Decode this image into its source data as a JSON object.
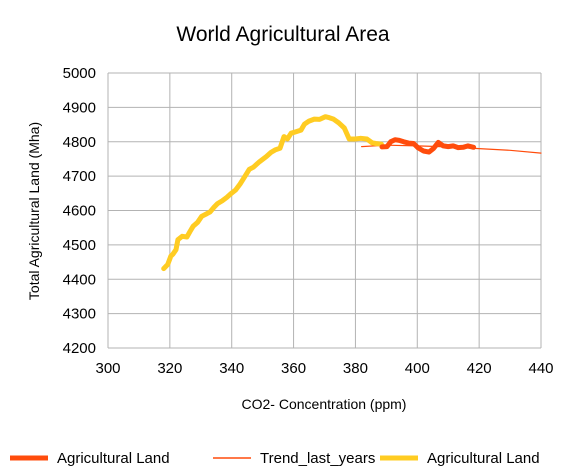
{
  "chart_data": {
    "type": "line",
    "title": "World Agricultural Area",
    "xlabel": "CO2- Concentration (ppm)",
    "ylabel": "Total Agricultural Land (Mha)",
    "xlim": [
      300,
      440
    ],
    "ylim": [
      4200,
      5000
    ],
    "xticks": [
      300,
      320,
      340,
      360,
      380,
      400,
      420,
      440
    ],
    "yticks": [
      4200,
      4300,
      4400,
      4500,
      4600,
      4700,
      4800,
      4900,
      5000
    ],
    "grid": true,
    "legend_position": "bottom",
    "series": [
      {
        "name": "Agricultural Land",
        "color": "#ff4c0c",
        "style": "thick-line",
        "x": [
          388.6,
          390.2,
          391.4,
          392.8,
          394.2,
          395.6,
          397.2,
          398.8,
          400.3,
          402.0,
          403.8,
          405.2,
          406.8,
          408.4,
          410.0,
          411.6,
          413.2,
          414.8,
          416.4,
          418.2
        ],
        "y": [
          4785,
          4786,
          4800,
          4806,
          4804,
          4800,
          4796,
          4795,
          4782,
          4773,
          4770,
          4780,
          4798,
          4788,
          4786,
          4788,
          4783,
          4784,
          4788,
          4784
        ]
      },
      {
        "name": "Trend_last_years",
        "color": "#ff4c0c",
        "style": "thin-line",
        "x": [
          382,
          390,
          400,
          410,
          420,
          430,
          440
        ],
        "y": [
          4786,
          4790,
          4788,
          4785,
          4780,
          4775,
          4767
        ]
      },
      {
        "name": "Agricultural Land",
        "color": "#ffcc22",
        "style": "thick-line",
        "x": [
          318.0,
          319.3,
          320.3,
          321.0,
          322.0,
          322.6,
          324.0,
          325.5,
          326.5,
          327.5,
          329.0,
          330.3,
          332.0,
          333.0,
          334.3,
          335.4,
          336.9,
          338.4,
          339.9,
          341.3,
          342.7,
          344.1,
          345.7,
          347.0,
          349.0,
          351.2,
          352.7,
          354.2,
          355.6,
          356.9,
          358.0,
          359.2,
          360.4,
          362.4,
          363.5,
          365.0,
          366.7,
          368.4,
          370.3,
          371.6,
          372.9,
          374.6,
          376.4,
          378.0,
          379.9,
          381.7,
          383.7,
          385.4,
          386.6,
          388.4
        ],
        "y": [
          4431,
          4443,
          4467,
          4473,
          4486,
          4515,
          4525,
          4523,
          4539,
          4554,
          4566,
          4583,
          4591,
          4596,
          4610,
          4620,
          4628,
          4638,
          4650,
          4660,
          4677,
          4697,
          4720,
          4726,
          4742,
          4757,
          4769,
          4777,
          4781,
          4815,
          4808,
          4825,
          4828,
          4834,
          4851,
          4860,
          4866,
          4865,
          4873,
          4870,
          4866,
          4855,
          4840,
          4808,
          4808,
          4810,
          4808,
          4797,
          4795,
          4793
        ]
      }
    ]
  }
}
